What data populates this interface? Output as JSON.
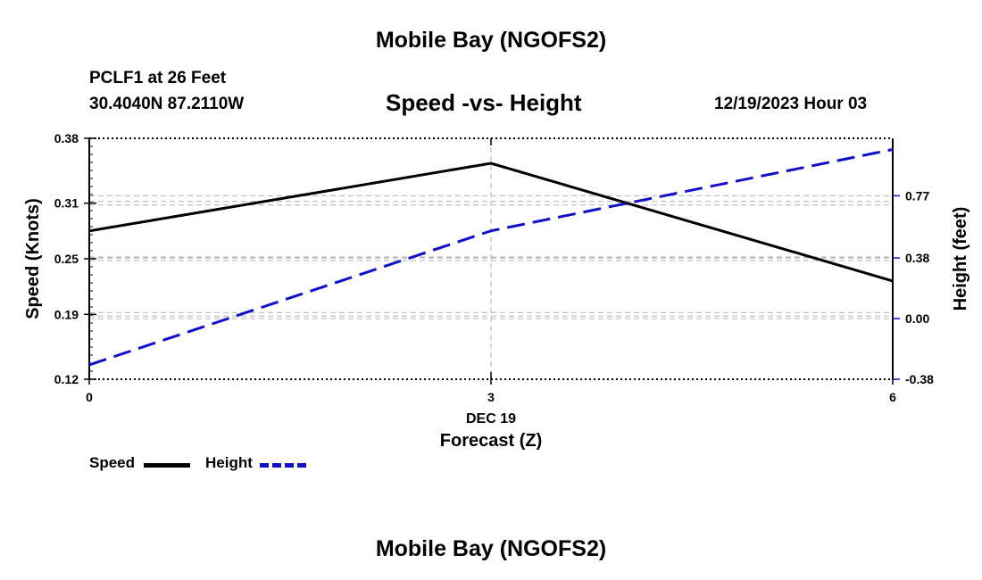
{
  "page": {
    "title_top": "Mobile Bay (NGOFS2)",
    "title_bottom": "Mobile Bay (NGOFS2)",
    "station": "PCLF1 at 26 Feet",
    "coords": "30.4040N  87.2110W",
    "subtitle": "Speed -vs- Height",
    "datetime": "12/19/2023 Hour 03"
  },
  "colors": {
    "speed": "#000000",
    "height": "#1010cc",
    "grid": "#b0b0b0"
  },
  "chart_data": {
    "type": "line",
    "xlabel": "Forecast (Z)",
    "x_date_label": "DEC 19",
    "x_ticks": [
      "0",
      "3",
      "6"
    ],
    "xlim": [
      0,
      6
    ],
    "x": [
      0,
      3,
      6
    ],
    "left_axis": {
      "label": "Speed (Knots)",
      "ticks": [
        "0.12",
        "0.19",
        "0.25",
        "0.31",
        "0.38"
      ],
      "ylim": [
        0.12,
        0.38
      ]
    },
    "right_axis": {
      "label": "Height (feet)",
      "ticks": [
        "-0.38",
        "0.00",
        "0.38",
        "0.77"
      ],
      "ylim": [
        -0.38,
        1.13
      ]
    },
    "series": [
      {
        "name": "Speed",
        "axis": "left",
        "style": "solid",
        "values": [
          0.28,
          0.353,
          0.226
        ]
      },
      {
        "name": "Height",
        "axis": "right",
        "style": "dashed",
        "values": [
          -0.29,
          0.55,
          1.06
        ]
      }
    ],
    "grid": true,
    "legend": "bottom-left"
  }
}
